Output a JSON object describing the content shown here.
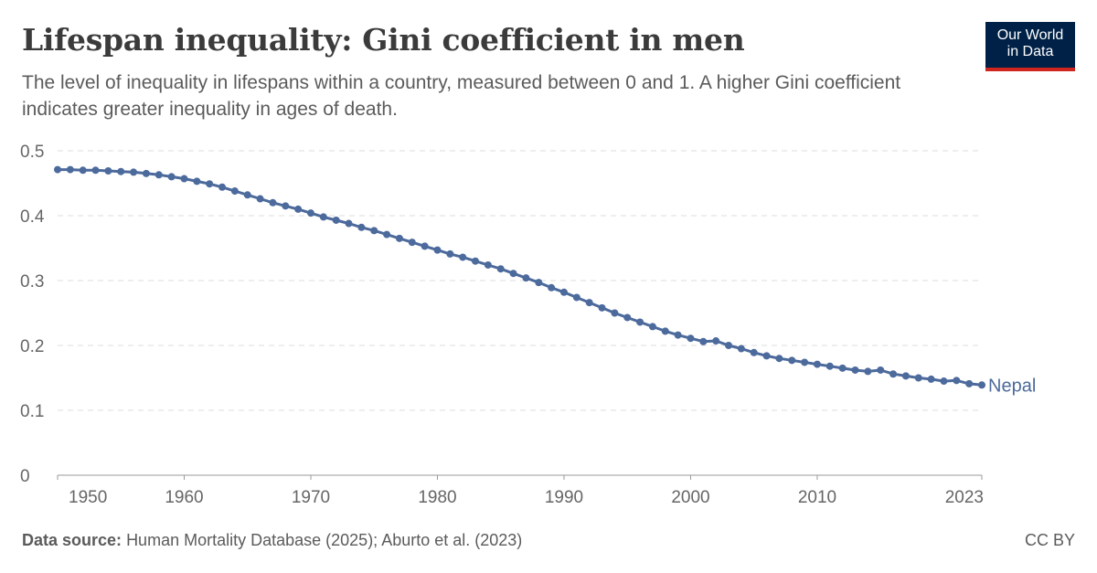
{
  "header": {
    "title": "Lifespan inequality: Gini coefficient in men",
    "subtitle": "The level of inequality in lifespans within a country, measured between 0 and 1. A higher Gini coefficient indicates greater inequality in ages of death."
  },
  "logo": {
    "line1": "Our World",
    "line2": "in Data"
  },
  "footer": {
    "source_label": "Data source:",
    "source_text": "Human Mortality Database (2025); Aburto et al. (2023)",
    "license": "CC BY"
  },
  "colors": {
    "series": "#4c6a9c",
    "grid": "#dddddd",
    "axis": "#666666",
    "logo_bg": "#002147",
    "logo_accent": "#ce261e"
  },
  "chart_data": {
    "type": "line",
    "title": "Lifespan inequality: Gini coefficient in men",
    "xlabel": "",
    "ylabel": "",
    "xlim": [
      1950,
      2023
    ],
    "ylim": [
      0,
      0.5
    ],
    "x_ticks": [
      1950,
      1960,
      1970,
      1980,
      1990,
      2000,
      2010,
      2023
    ],
    "y_ticks": [
      0,
      0.1,
      0.2,
      0.3,
      0.4,
      0.5
    ],
    "grid": "horizontal dashed",
    "legend": "inline label at line end",
    "series": [
      {
        "name": "Nepal",
        "x": [
          1950,
          1951,
          1952,
          1953,
          1954,
          1955,
          1956,
          1957,
          1958,
          1959,
          1960,
          1961,
          1962,
          1963,
          1964,
          1965,
          1966,
          1967,
          1968,
          1969,
          1970,
          1971,
          1972,
          1973,
          1974,
          1975,
          1976,
          1977,
          1978,
          1979,
          1980,
          1981,
          1982,
          1983,
          1984,
          1985,
          1986,
          1987,
          1988,
          1989,
          1990,
          1991,
          1992,
          1993,
          1994,
          1995,
          1996,
          1997,
          1998,
          1999,
          2000,
          2001,
          2002,
          2003,
          2004,
          2005,
          2006,
          2007,
          2008,
          2009,
          2010,
          2011,
          2012,
          2013,
          2014,
          2015,
          2016,
          2017,
          2018,
          2019,
          2020,
          2021,
          2022,
          2023
        ],
        "y": [
          0.471,
          0.471,
          0.47,
          0.47,
          0.469,
          0.468,
          0.467,
          0.465,
          0.463,
          0.46,
          0.457,
          0.453,
          0.449,
          0.444,
          0.438,
          0.432,
          0.426,
          0.42,
          0.415,
          0.41,
          0.404,
          0.398,
          0.393,
          0.388,
          0.382,
          0.377,
          0.371,
          0.365,
          0.359,
          0.353,
          0.347,
          0.341,
          0.336,
          0.33,
          0.324,
          0.318,
          0.311,
          0.304,
          0.297,
          0.289,
          0.282,
          0.274,
          0.266,
          0.258,
          0.25,
          0.243,
          0.236,
          0.229,
          0.222,
          0.216,
          0.211,
          0.206,
          0.207,
          0.2,
          0.195,
          0.189,
          0.184,
          0.18,
          0.177,
          0.174,
          0.171,
          0.168,
          0.165,
          0.162,
          0.16,
          0.162,
          0.156,
          0.153,
          0.15,
          0.148,
          0.145,
          0.146,
          0.141,
          0.139
        ]
      }
    ]
  }
}
